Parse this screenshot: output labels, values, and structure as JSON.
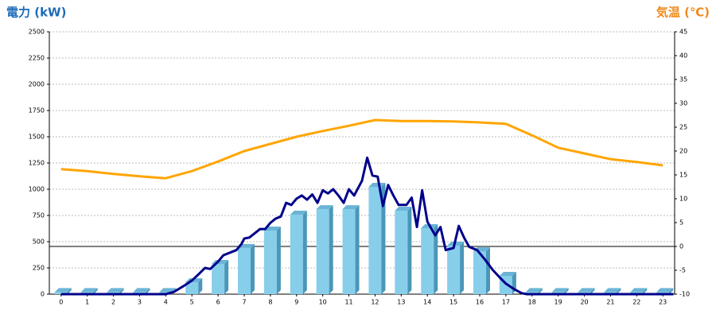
{
  "chart_data": {
    "type": "bar",
    "ylabel": "電力 (kW)",
    "y2label": "気温 (℃)",
    "xlim": [
      -0.45,
      23.45
    ],
    "xticks": [
      0,
      1,
      2,
      3,
      4,
      5,
      6,
      7,
      8,
      9,
      10,
      11,
      12,
      13,
      14,
      15,
      16,
      17,
      18,
      19,
      20,
      21,
      22,
      23
    ],
    "ylim": [
      0,
      2500
    ],
    "yticks": [
      0,
      250,
      500,
      750,
      1000,
      1250,
      1500,
      1750,
      2000,
      2250,
      2500
    ],
    "y2lim": [
      -10,
      45
    ],
    "y2ticks": [
      -10,
      -5,
      0,
      5,
      10,
      15,
      20,
      25,
      30,
      35,
      40,
      45
    ],
    "grid": true,
    "hline": {
      "axis": "y2",
      "value": 0
    },
    "series": [
      {
        "type": "bar",
        "color": "#87ceeb",
        "x": [
          0,
          1,
          2,
          3,
          4,
          5,
          6,
          7,
          8,
          9,
          10,
          11,
          12,
          13,
          14,
          15,
          16,
          17,
          18,
          19,
          20,
          21,
          22,
          23
        ],
        "values": [
          20,
          20,
          20,
          20,
          20,
          114,
          288,
          440,
          606,
          758,
          810,
          810,
          1023,
          795,
          629,
          462,
          409,
          174,
          20,
          20,
          20,
          20,
          20,
          20
        ]
      },
      {
        "type": "line",
        "color": "#00008b",
        "x": [
          0,
          4.0,
          4.3,
          4.7,
          5.0,
          5.3,
          5.5,
          5.7,
          6.0,
          6.2,
          6.5,
          6.7,
          6.9,
          7.0,
          7.2,
          7.4,
          7.6,
          7.8,
          8.0,
          8.2,
          8.4,
          8.6,
          8.8,
          9.0,
          9.2,
          9.4,
          9.6,
          9.8,
          10.0,
          10.2,
          10.4,
          10.6,
          10.8,
          11.0,
          11.2,
          11.5,
          11.7,
          11.9,
          12.1,
          12.3,
          12.5,
          12.7,
          12.9,
          13.2,
          13.4,
          13.6,
          13.8,
          14.0,
          14.3,
          14.5,
          14.7,
          15.0,
          15.2,
          15.4,
          15.6,
          15.9,
          16.2,
          16.5,
          16.8,
          17.0,
          17.3,
          17.6,
          17.8,
          23.4
        ],
        "values": [
          0,
          0,
          20,
          80,
          130,
          200,
          250,
          240,
          310,
          370,
          400,
          420,
          480,
          530,
          540,
          580,
          620,
          620,
          680,
          720,
          740,
          870,
          850,
          910,
          940,
          900,
          950,
          870,
          990,
          960,
          1000,
          940,
          870,
          1000,
          940,
          1080,
          1300,
          1130,
          1120,
          840,
          1040,
          940,
          850,
          850,
          920,
          640,
          990,
          690,
          560,
          640,
          420,
          440,
          650,
          540,
          450,
          420,
          330,
          230,
          150,
          100,
          50,
          10,
          0,
          0
        ]
      },
      {
        "type": "line",
        "color": "#ffa500",
        "axis": "y2",
        "x": [
          0,
          1,
          2,
          3,
          4,
          5,
          6,
          7,
          8,
          9,
          10,
          11,
          12,
          13,
          14,
          15,
          16,
          17,
          18,
          19,
          20,
          21,
          22,
          23
        ],
        "values": [
          16.2,
          15.8,
          15.2,
          14.7,
          14.3,
          15.8,
          17.8,
          20,
          21.5,
          23,
          24.2,
          25.3,
          26.5,
          26.3,
          26.3,
          26.2,
          26,
          25.7,
          23.3,
          20.7,
          19.5,
          18.3,
          17.7,
          17
        ]
      }
    ]
  }
}
